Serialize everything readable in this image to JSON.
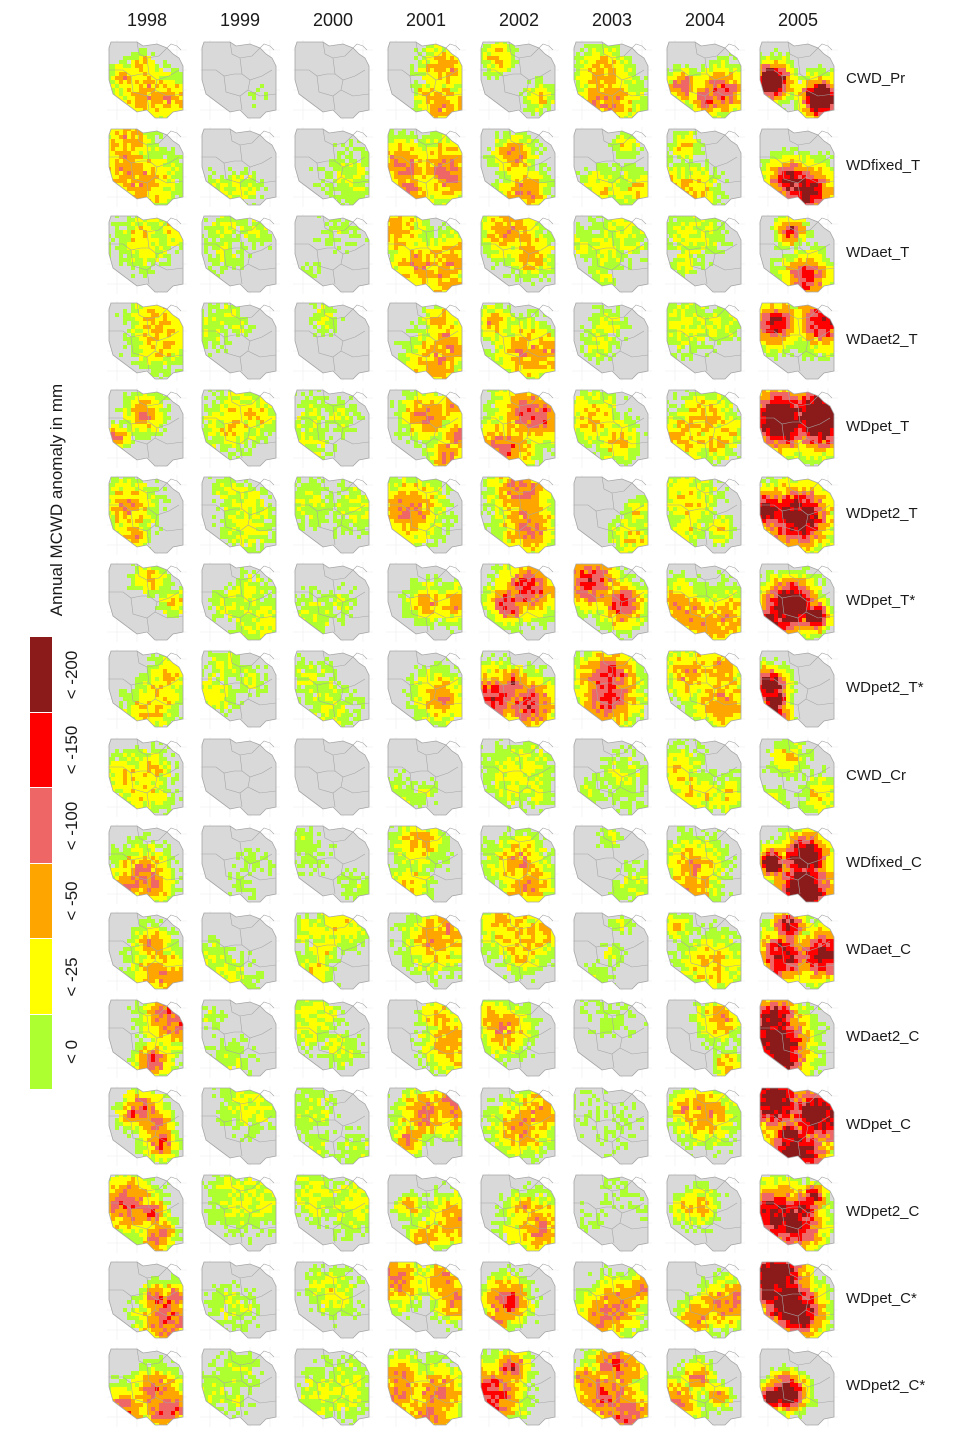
{
  "legend": {
    "title": "Annual MCWD anomaly in mm",
    "classes": [
      {
        "label": "< -200",
        "color": "#8b1a1a"
      },
      {
        "label": "< -150",
        "color": "#ff0000"
      },
      {
        "label": "< -100",
        "color": "#ee6666"
      },
      {
        "label": "< -50",
        "color": "#ffa500"
      },
      {
        "label": "< -25",
        "color": "#ffff00"
      },
      {
        "label": "< 0",
        "color": "#adff2f"
      }
    ]
  },
  "colors": {
    "land": "#d9d9d9",
    "border": "#a6a6a6",
    "grid": "#ececec"
  },
  "map_type": "small-multiple anomaly maps (column = year, row = product)",
  "years": [
    "1998",
    "1999",
    "2000",
    "2001",
    "2002",
    "2003",
    "2004",
    "2005"
  ],
  "products": [
    "CWD_Pr",
    "WDfixed_T",
    "WDaet_T",
    "WDaet2_T",
    "WDpet_T",
    "WDpet2_T",
    "WDpet_T*",
    "WDpet2_T*",
    "CWD_Cr",
    "WDfixed_C",
    "WDaet_C",
    "WDaet2_C",
    "WDpet_C",
    "WDpet2_C",
    "WDpet_C*",
    "WDpet2_C*"
  ],
  "anomaly_intensity": [
    [
      0.45,
      0.1,
      0.05,
      0.45,
      0.4,
      0.45,
      0.55,
      0.85
    ],
    [
      0.45,
      0.3,
      0.25,
      0.5,
      0.5,
      0.35,
      0.4,
      0.7
    ],
    [
      0.35,
      0.25,
      0.2,
      0.45,
      0.45,
      0.3,
      0.3,
      0.6
    ],
    [
      0.4,
      0.25,
      0.25,
      0.45,
      0.45,
      0.3,
      0.3,
      0.65
    ],
    [
      0.5,
      0.35,
      0.25,
      0.5,
      0.55,
      0.4,
      0.4,
      0.85
    ],
    [
      0.45,
      0.3,
      0.25,
      0.5,
      0.5,
      0.35,
      0.35,
      0.75
    ],
    [
      0.4,
      0.3,
      0.25,
      0.45,
      0.6,
      0.6,
      0.45,
      0.85
    ],
    [
      0.4,
      0.3,
      0.25,
      0.45,
      0.6,
      0.6,
      0.45,
      0.8
    ],
    [
      0.35,
      0.05,
      0.05,
      0.25,
      0.3,
      0.25,
      0.35,
      0.35
    ],
    [
      0.5,
      0.2,
      0.2,
      0.4,
      0.45,
      0.25,
      0.45,
      0.8
    ],
    [
      0.45,
      0.3,
      0.35,
      0.45,
      0.4,
      0.25,
      0.4,
      0.7
    ],
    [
      0.55,
      0.25,
      0.3,
      0.45,
      0.45,
      0.2,
      0.45,
      0.75
    ],
    [
      0.55,
      0.3,
      0.25,
      0.5,
      0.45,
      0.15,
      0.45,
      0.75
    ],
    [
      0.55,
      0.3,
      0.3,
      0.45,
      0.45,
      0.15,
      0.4,
      0.7
    ],
    [
      0.55,
      0.25,
      0.3,
      0.5,
      0.6,
      0.5,
      0.5,
      0.8
    ],
    [
      0.55,
      0.25,
      0.3,
      0.5,
      0.6,
      0.55,
      0.5,
      0.8
    ]
  ]
}
